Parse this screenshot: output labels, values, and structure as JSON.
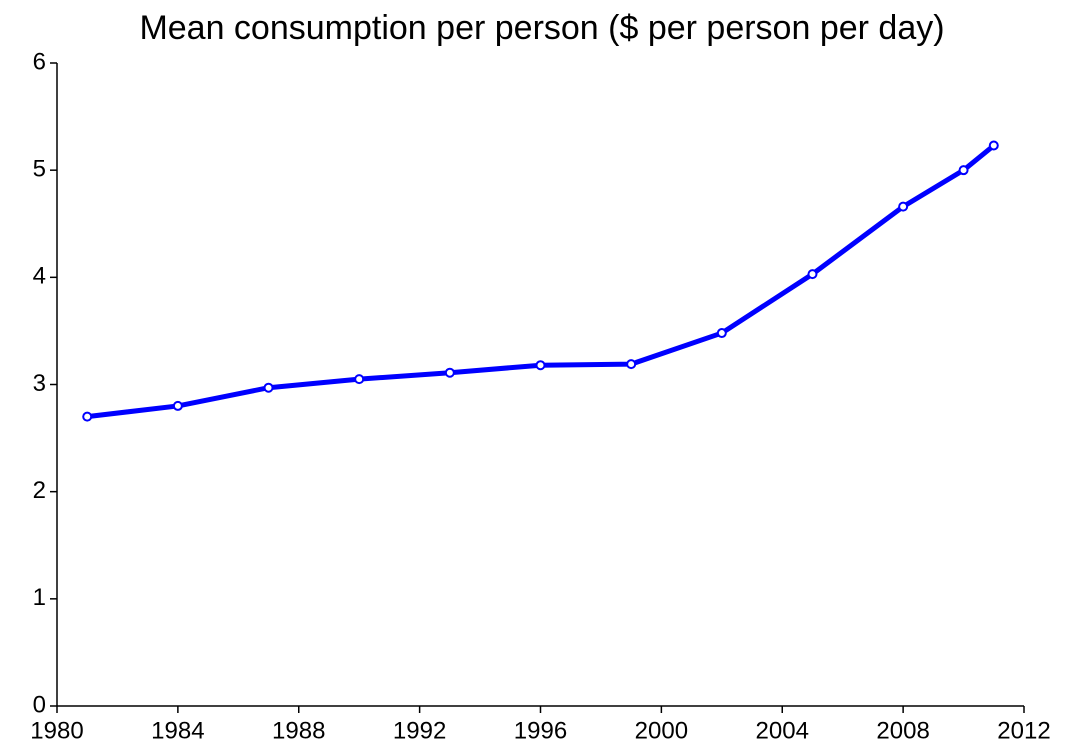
{
  "chart_data": {
    "type": "line",
    "title": "Mean consumption per person ($ per person per day)",
    "x": [
      1981,
      1984,
      1987,
      1990,
      1993,
      1996,
      1999,
      2002,
      2005,
      2008,
      2010,
      2011
    ],
    "series": [
      {
        "name": "Mean consumption per person",
        "color": "#0000ff",
        "values": [
          2.7,
          2.8,
          2.97,
          3.05,
          3.11,
          3.18,
          3.19,
          3.48,
          4.03,
          4.66,
          5.0,
          5.23
        ]
      }
    ],
    "xlim": [
      1980,
      2012
    ],
    "xticks": [
      1980,
      1984,
      1988,
      1992,
      1996,
      2000,
      2004,
      2008,
      2012
    ],
    "ylim": [
      0,
      6
    ],
    "yticks": [
      0,
      1,
      2,
      3,
      4,
      5,
      6
    ]
  }
}
